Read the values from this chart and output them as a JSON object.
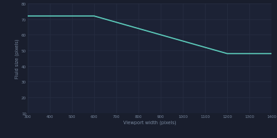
{
  "bg_color": "#191e2d",
  "plot_bg_color": "#1c2235",
  "grid_color": "#272e42",
  "line_color": "#5ecfbe",
  "xlabel": "Viewport width (pixels)",
  "ylabel": "Fluid size (pixels)",
  "x_min": 300,
  "x_max": 1400,
  "y_min": 10,
  "y_max": 80,
  "x_ticks": [
    300,
    400,
    500,
    600,
    700,
    800,
    900,
    1000,
    1100,
    1200,
    1300,
    1400
  ],
  "y_ticks": [
    10,
    20,
    30,
    40,
    50,
    60,
    70,
    80
  ],
  "breakpoints": [
    [
      300,
      72
    ],
    [
      600,
      72
    ],
    [
      1200,
      48
    ],
    [
      1400,
      48
    ]
  ],
  "line_width": 1.2,
  "label_fontsize": 4.8,
  "tick_fontsize": 4.0,
  "tick_color": "#7a8aa0",
  "label_color": "#7a8aa0"
}
